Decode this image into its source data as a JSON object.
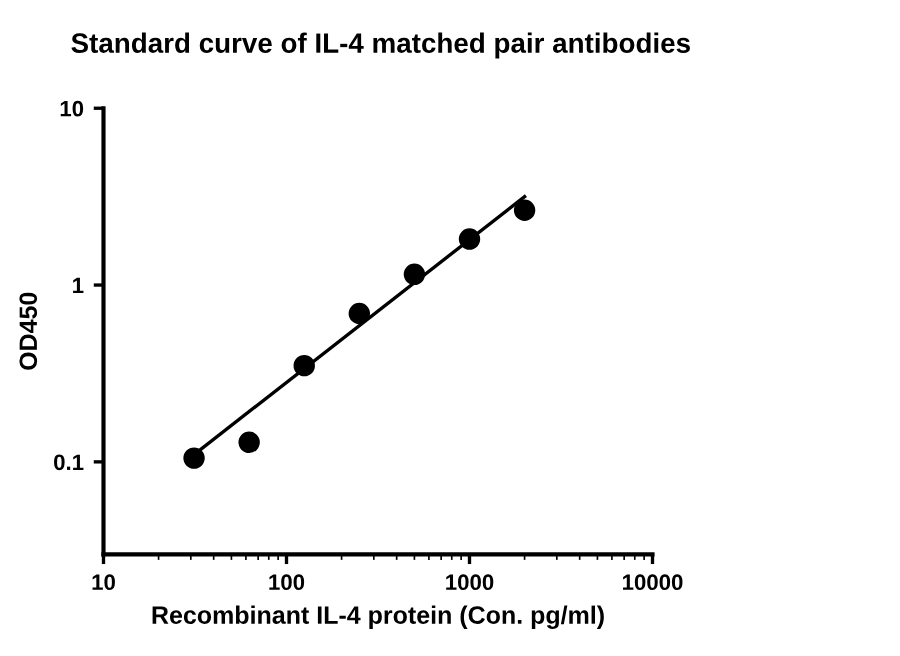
{
  "chart_data": {
    "type": "scatter",
    "title": "Standard curve of IL-4 matched pair antibodies",
    "xlabel": "Recombinant IL-4 protein (Con. pg/ml)",
    "ylabel": "OD450",
    "log": "xy",
    "xlim": [
      10,
      10000
    ],
    "xticks": [
      10,
      100,
      1000,
      10000
    ],
    "ylim": [
      0.03,
      10
    ],
    "yticks": [
      0.1,
      1,
      10
    ],
    "grid": false,
    "legend": false,
    "marker": "circle",
    "series": [
      {
        "color": "#000000",
        "x": [
          31.25,
          62.5,
          125,
          250,
          500,
          1000,
          2000
        ],
        "values": [
          0.105,
          0.129,
          0.35,
          0.69,
          1.15,
          1.82,
          2.65
        ]
      },
      {
        "type": "line",
        "color": "#000000",
        "line_style": "solid",
        "marker": "none",
        "x": [
          31.25,
          2000
        ],
        "values": [
          0.11,
          3.16
        ]
      }
    ]
  }
}
